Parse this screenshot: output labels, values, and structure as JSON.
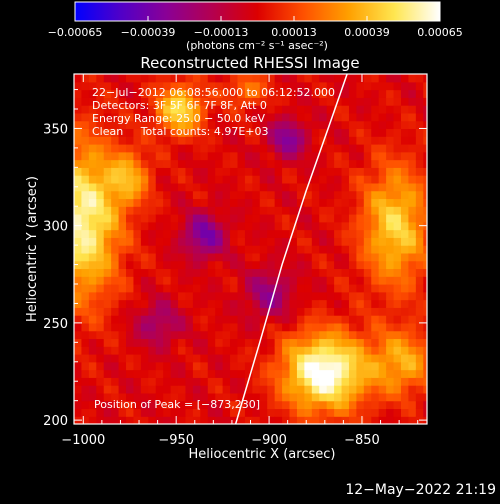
{
  "chart_data": {
    "type": "heatmap",
    "title": "Reconstructed RHESSI Image",
    "xlabel": "Heliocentric X (arcsec)",
    "ylabel": "Heliocentric Y (arcsec)",
    "xlim": [
      -1005,
      -815
    ],
    "ylim": [
      198,
      378
    ],
    "xticks": [
      {
        "value": -1000,
        "label": "−1000"
      },
      {
        "value": -950,
        "label": "−950"
      },
      {
        "value": -900,
        "label": "−900"
      },
      {
        "value": -850,
        "label": "−850"
      }
    ],
    "yticks": [
      {
        "value": 200,
        "label": "200"
      },
      {
        "value": 250,
        "label": "250"
      },
      {
        "value": 300,
        "label": "300"
      },
      {
        "value": 350,
        "label": "350"
      }
    ],
    "colorbar": {
      "min": -0.00065,
      "max": 0.00065,
      "unit_label": "(photons cm⁻² s⁻¹ asec⁻²)",
      "ticks": [
        {
          "value": -0.00065,
          "label": "−0.00065"
        },
        {
          "value": -0.00039,
          "label": "−0.00039"
        },
        {
          "value": -0.00013,
          "label": "−0.00013"
        },
        {
          "value": 0.00013,
          "label": "0.00013"
        },
        {
          "value": 0.00039,
          "label": "0.00039"
        },
        {
          "value": 0.00065,
          "label": "0.00065"
        }
      ],
      "colormap": [
        "#0000ff",
        "#5000c8",
        "#8a0096",
        "#b40050",
        "#dc0000",
        "#ff5000",
        "#ffa000",
        "#ffe650",
        "#ffffff"
      ]
    },
    "annotations": [
      "22−Jul−2012 06:08:56.000 to 06:12:52.000",
      "Detectors: 3F 5F 6F 7F 8F, Att 0",
      "Energy Range: 25.0 − 50.0 keV",
      "Clean     Total counts: 4.97E+03"
    ],
    "peak_label": "Position of Peak = [−873,230]",
    "peak": {
      "x": -873,
      "y": 230
    },
    "limb_curve": [
      {
        "x": -918,
        "y": 198
      },
      {
        "x": -905,
        "y": 240
      },
      {
        "x": -893,
        "y": 280
      },
      {
        "x": -880,
        "y": 318
      },
      {
        "x": -866,
        "y": 356
      },
      {
        "x": -858,
        "y": 378
      }
    ],
    "sources": [
      {
        "x": -870,
        "y": 225,
        "amp": 1.0,
        "sx": 16,
        "sy": 14
      },
      {
        "x": -1000,
        "y": 303,
        "amp": 0.85,
        "sx": 14,
        "sy": 28
      },
      {
        "x": -948,
        "y": 360,
        "amp": 0.7,
        "sx": 9,
        "sy": 9
      },
      {
        "x": -832,
        "y": 300,
        "amp": 0.65,
        "sx": 13,
        "sy": 22
      },
      {
        "x": -975,
        "y": 325,
        "amp": 0.45,
        "sx": 8,
        "sy": 10
      },
      {
        "x": -828,
        "y": 230,
        "amp": 0.5,
        "sx": 12,
        "sy": 12
      },
      {
        "x": -912,
        "y": 370,
        "amp": 0.35,
        "sx": 8,
        "sy": 6
      },
      {
        "x": -935,
        "y": 295,
        "amp": -0.55,
        "sx": 8,
        "sy": 8
      },
      {
        "x": -890,
        "y": 345,
        "amp": -0.5,
        "sx": 7,
        "sy": 7
      },
      {
        "x": -900,
        "y": 265,
        "amp": -0.4,
        "sx": 9,
        "sy": 9
      },
      {
        "x": -960,
        "y": 250,
        "amp": -0.35,
        "sx": 9,
        "sy": 8
      }
    ]
  },
  "footer": {
    "timestamp": "12−May−2022 21:19"
  }
}
